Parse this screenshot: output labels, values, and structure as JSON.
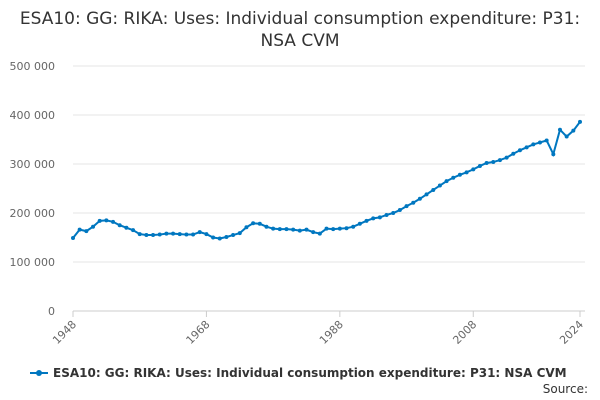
{
  "chart_data": {
    "type": "line",
    "title": "ESA10: GG: RIKA: Uses: Individual consumption expenditure: P31: NSA CVM",
    "xlabel": "",
    "ylabel": "",
    "x_start": 1948,
    "x_end": 2024,
    "x_ticks": [
      "1948",
      "1968",
      "1988",
      "2008",
      "2024"
    ],
    "y_ticks": [
      "0",
      "100 000",
      "200 000",
      "300 000",
      "400 000",
      "500 000"
    ],
    "ylim": [
      0,
      500000
    ],
    "grid": true,
    "legend_position": "bottom",
    "color": "#0077c0",
    "series": [
      {
        "name": "ESA10: GG: RIKA: Uses: Individual consumption expenditure: P31: NSA CVM",
        "values": [
          149000,
          166000,
          163000,
          172000,
          184000,
          185000,
          182000,
          175000,
          170000,
          165000,
          157000,
          155000,
          155000,
          156000,
          158000,
          158000,
          157000,
          156000,
          156000,
          161000,
          157000,
          150000,
          148000,
          151000,
          155000,
          159000,
          171000,
          179000,
          178000,
          172000,
          168000,
          167000,
          167000,
          166000,
          164000,
          166000,
          161000,
          158000,
          168000,
          167000,
          168000,
          169000,
          172000,
          178000,
          184000,
          189000,
          191000,
          196000,
          200000,
          206000,
          214000,
          221000,
          229000,
          238000,
          247000,
          256000,
          265000,
          272000,
          278000,
          283000,
          289000,
          296000,
          302000,
          304000,
          308000,
          313000,
          321000,
          328000,
          334000,
          340000,
          344000,
          348000,
          320000,
          370000,
          356000,
          368000,
          386000
        ]
      }
    ]
  },
  "source_label": "Source:"
}
